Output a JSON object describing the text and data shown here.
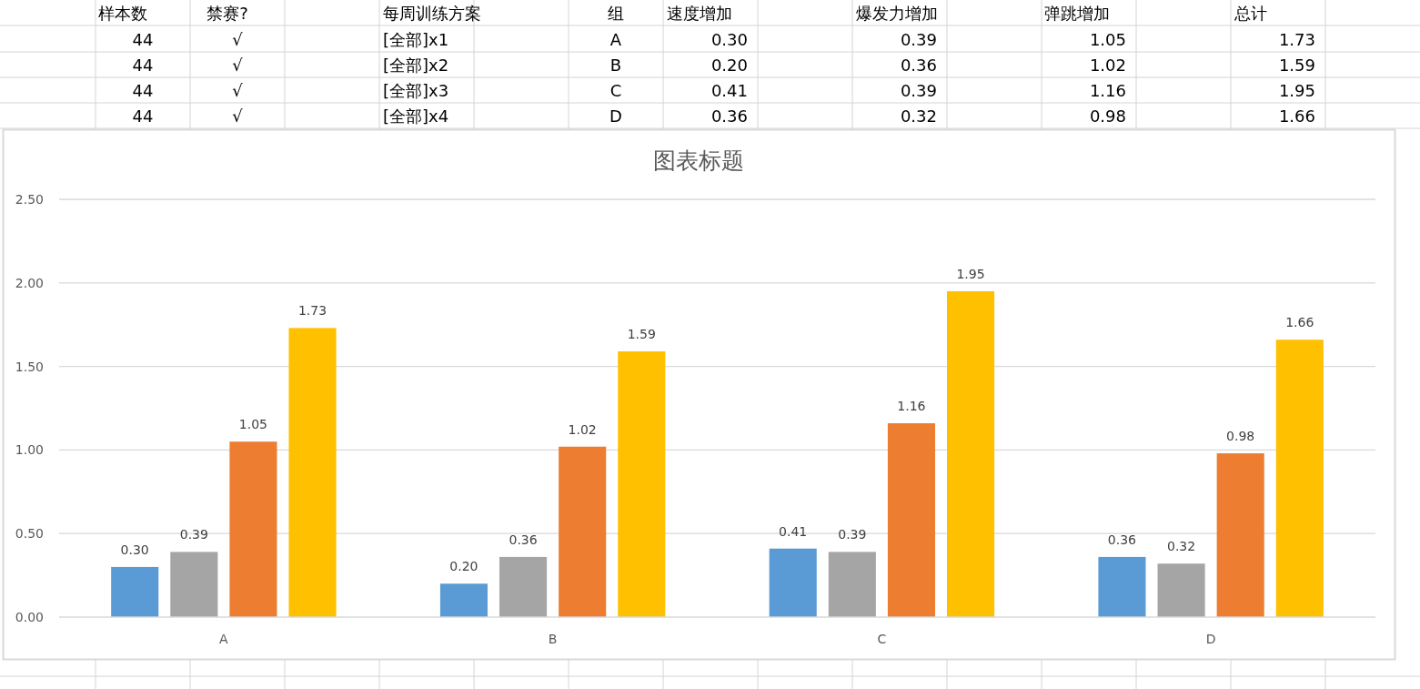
{
  "chart_data": {
    "type": "bar",
    "title": "图表标题",
    "categories": [
      "A",
      "B",
      "C",
      "D"
    ],
    "series": [
      {
        "color": "#5b9bd5",
        "values": [
          0.3,
          0.2,
          0.41,
          0.36
        ],
        "value_labels": [
          "0.30",
          "0.20",
          "0.41",
          "0.36"
        ]
      },
      {
        "color": "#a5a5a5",
        "values": [
          0.39,
          0.36,
          0.39,
          0.32
        ],
        "value_labels": [
          "0.39",
          "0.36",
          "0.39",
          "0.32"
        ]
      },
      {
        "color": "#ed7d31",
        "values": [
          1.05,
          1.02,
          1.16,
          0.98
        ],
        "value_labels": [
          "1.05",
          "1.02",
          "1.16",
          "0.98"
        ]
      },
      {
        "color": "#ffc000",
        "values": [
          1.73,
          1.59,
          1.95,
          1.66
        ],
        "value_labels": [
          "1.73",
          "1.59",
          "1.95",
          "1.66"
        ]
      }
    ],
    "ylim": [
      0,
      2.5
    ],
    "yticks": [
      {
        "value": 0,
        "label": "0.00"
      },
      {
        "value": 0.5,
        "label": "0.50"
      },
      {
        "value": 1,
        "label": "1.00"
      },
      {
        "value": 1.5,
        "label": "1.50"
      },
      {
        "value": 2,
        "label": "2.00"
      },
      {
        "value": 2.5,
        "label": "2.50"
      }
    ],
    "grid": "y",
    "annotations": [
      "样本数",
      "禁赛?",
      "每周训练方案",
      "组",
      "速度增加",
      "爆发力增加",
      "弹跳增加",
      "总计",
      "44",
      "√",
      "[全部]x1",
      "44",
      "√",
      "[全部]x2",
      "44",
      "√",
      "[全部]x3",
      "44",
      "√",
      "[全部]x4"
    ]
  }
}
